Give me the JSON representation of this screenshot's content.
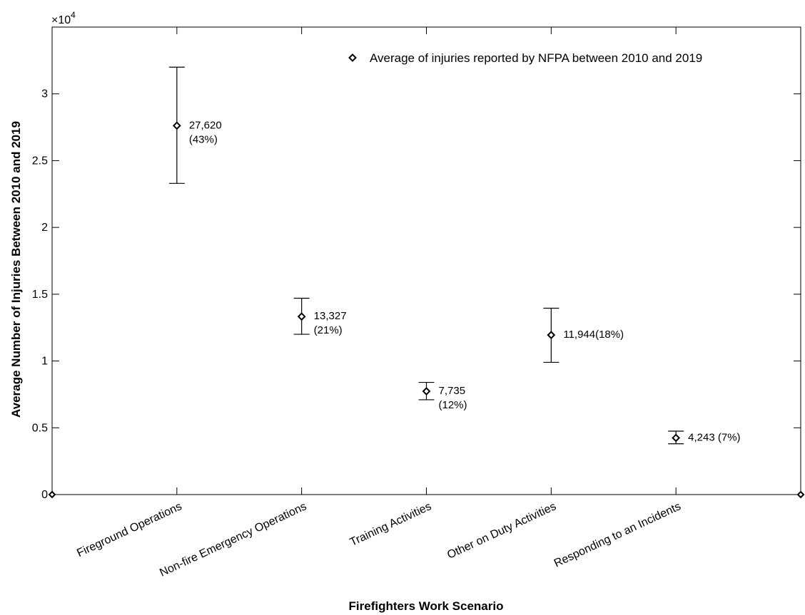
{
  "chart_data": {
    "type": "scatter",
    "title": "",
    "xlabel": "Firefighters Work Scenario",
    "ylabel": "Average Number of Injuries Between 2010 and 2019",
    "y_exponent_label": "×10",
    "y_exponent_power": "4",
    "ylim": [
      0,
      35000
    ],
    "y_ticks": [
      0,
      5000,
      10000,
      15000,
      20000,
      25000,
      30000
    ],
    "y_tick_labels": [
      "0",
      "0.5",
      "1",
      "1.5",
      "2",
      "2.5",
      "3"
    ],
    "categories": [
      "Fireground Operations",
      "Non-fire Emergency Operations",
      "Training Activities",
      "Other on Duty Activities",
      "Responding to an Incidents"
    ],
    "grid": false,
    "legend_position": "top-right",
    "series": [
      {
        "name": "Average of injuries reported by NFPA between 2010 and 2019",
        "marker": "diamond",
        "color": "#000000",
        "values": [
          27620,
          13327,
          7735,
          11944,
          4243
        ],
        "error_low": [
          23300,
          12000,
          7100,
          9900,
          3800
        ],
        "error_high": [
          32000,
          14700,
          8400,
          13950,
          4750
        ],
        "data_labels": [
          [
            "27,620",
            "(43%)"
          ],
          [
            "13,327",
            "(21%)"
          ],
          [
            "7,735",
            "(12%)"
          ],
          [
            "11,944(18%)"
          ],
          [
            "4,243 (7%)"
          ]
        ],
        "edge_points": [
          0,
          0
        ]
      }
    ]
  }
}
